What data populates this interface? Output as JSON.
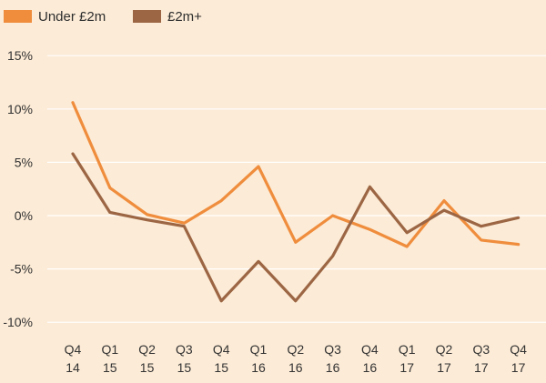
{
  "chart_data": {
    "type": "line",
    "title": "",
    "xlabel": "",
    "ylabel": "",
    "categories": [
      [
        "Q4",
        "14"
      ],
      [
        "Q1",
        "15"
      ],
      [
        "Q2",
        "15"
      ],
      [
        "Q3",
        "15"
      ],
      [
        "Q4",
        "15"
      ],
      [
        "Q1",
        "16"
      ],
      [
        "Q2",
        "16"
      ],
      [
        "Q3",
        "16"
      ],
      [
        "Q4",
        "16"
      ],
      [
        "Q1",
        "17"
      ],
      [
        "Q2",
        "17"
      ],
      [
        "Q3",
        "17"
      ],
      [
        "Q4",
        "17"
      ]
    ],
    "yticks": [
      "15%",
      "10%",
      "5%",
      "0%",
      "-5%",
      "-10%"
    ],
    "ytick_values": [
      15,
      10,
      5,
      0,
      -5,
      -10
    ],
    "ylim": [
      -10,
      15
    ],
    "grid": "horizontal",
    "legend_position": "top-left",
    "series": [
      {
        "name": "Under £2m",
        "color": "#ef8d3d",
        "values": [
          10.6,
          2.6,
          0.1,
          -0.7,
          1.4,
          4.6,
          -2.5,
          0.0,
          -1.3,
          -2.9,
          1.4,
          -2.3,
          -2.7
        ]
      },
      {
        "name": "£2m+",
        "color": "#9c6644",
        "values": [
          5.8,
          0.3,
          -0.4,
          -1.0,
          -8.0,
          -4.3,
          -8.0,
          -3.8,
          2.7,
          -1.6,
          0.5,
          -1.0,
          -0.2
        ]
      }
    ]
  }
}
